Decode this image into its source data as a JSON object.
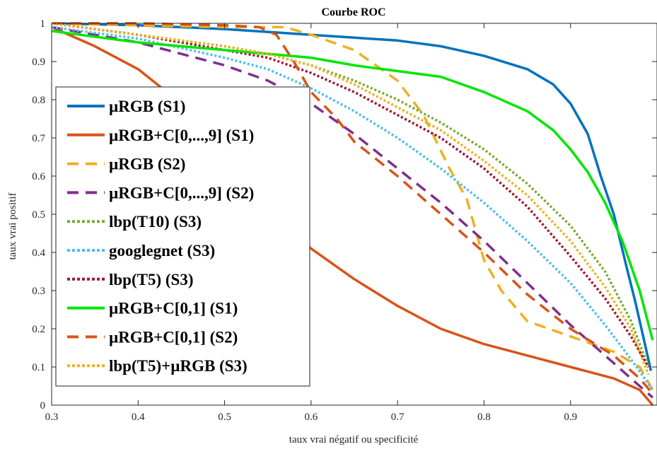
{
  "chart_data": {
    "type": "line",
    "title": "Courbe ROC",
    "xlabel": "taux vrai négatif ou specificité",
    "ylabel": "taux vrai positif",
    "xlim": [
      0.3,
      1.0
    ],
    "ylim": [
      0,
      1
    ],
    "xticks": [
      0.3,
      0.4,
      0.5,
      0.6,
      0.7,
      0.8,
      0.9
    ],
    "xtick_labels": [
      "0.3",
      "0.4",
      "0.5",
      "0.6",
      "0.7",
      "0.8",
      "0.9"
    ],
    "yticks": [
      0,
      0.1,
      0.2,
      0.3,
      0.4,
      0.5,
      0.6,
      0.7,
      0.8,
      0.9,
      1
    ],
    "ytick_labels": [
      "0",
      "0.1",
      "0.2",
      "0.3",
      "0.4",
      "0.5",
      "0.6",
      "0.7",
      "0.8",
      "0.9",
      "1"
    ],
    "grid": false,
    "legend_position": "left",
    "series": [
      {
        "name": "µRGB (S1)",
        "color": "#0072BD",
        "dash": "solid",
        "points": [
          [
            0.3,
            1.0
          ],
          [
            0.4,
            0.995
          ],
          [
            0.5,
            0.985
          ],
          [
            0.6,
            0.97
          ],
          [
            0.7,
            0.955
          ],
          [
            0.75,
            0.94
          ],
          [
            0.8,
            0.915
          ],
          [
            0.85,
            0.88
          ],
          [
            0.88,
            0.84
          ],
          [
            0.9,
            0.79
          ],
          [
            0.92,
            0.71
          ],
          [
            0.935,
            0.6
          ],
          [
            0.95,
            0.5
          ],
          [
            0.965,
            0.36
          ],
          [
            0.975,
            0.27
          ],
          [
            0.985,
            0.17
          ],
          [
            0.993,
            0.09
          ]
        ]
      },
      {
        "name": "µRGB+C[0,...,9] (S1)",
        "color": "#D95319",
        "dash": "solid",
        "points": [
          [
            0.3,
            0.99
          ],
          [
            0.35,
            0.94
          ],
          [
            0.4,
            0.88
          ],
          [
            0.45,
            0.79
          ],
          [
            0.5,
            0.66
          ],
          [
            0.55,
            0.52
          ],
          [
            0.6,
            0.41
          ],
          [
            0.65,
            0.33
          ],
          [
            0.7,
            0.26
          ],
          [
            0.75,
            0.2
          ],
          [
            0.8,
            0.16
          ],
          [
            0.85,
            0.13
          ],
          [
            0.9,
            0.1
          ],
          [
            0.95,
            0.07
          ],
          [
            0.98,
            0.04
          ],
          [
            0.995,
            0.0
          ]
        ]
      },
      {
        "name": "µRGB (S2)",
        "color": "#EDB120",
        "dash": "dashed",
        "points": [
          [
            0.3,
            1.0
          ],
          [
            0.4,
            0.995
          ],
          [
            0.5,
            0.99
          ],
          [
            0.57,
            0.99
          ],
          [
            0.6,
            0.97
          ],
          [
            0.65,
            0.93
          ],
          [
            0.7,
            0.85
          ],
          [
            0.73,
            0.76
          ],
          [
            0.76,
            0.62
          ],
          [
            0.78,
            0.54
          ],
          [
            0.8,
            0.38
          ],
          [
            0.82,
            0.3
          ],
          [
            0.85,
            0.22
          ],
          [
            0.9,
            0.18
          ],
          [
            0.95,
            0.14
          ],
          [
            0.98,
            0.1
          ],
          [
            0.995,
            0.04
          ]
        ]
      },
      {
        "name": "µRGB+C[0,...,9] (S2)",
        "color": "#7E2F8E",
        "dash": "dashed",
        "points": [
          [
            0.3,
            0.99
          ],
          [
            0.4,
            0.95
          ],
          [
            0.5,
            0.89
          ],
          [
            0.55,
            0.85
          ],
          [
            0.6,
            0.79
          ],
          [
            0.65,
            0.71
          ],
          [
            0.7,
            0.62
          ],
          [
            0.75,
            0.53
          ],
          [
            0.8,
            0.43
          ],
          [
            0.85,
            0.32
          ],
          [
            0.9,
            0.21
          ],
          [
            0.95,
            0.11
          ],
          [
            0.98,
            0.05
          ],
          [
            0.995,
            0.02
          ]
        ]
      },
      {
        "name": "lbp(T10) (S3)",
        "color": "#77AC30",
        "dash": "dotted",
        "points": [
          [
            0.3,
            1.0
          ],
          [
            0.4,
            0.97
          ],
          [
            0.5,
            0.94
          ],
          [
            0.55,
            0.92
          ],
          [
            0.6,
            0.89
          ],
          [
            0.65,
            0.85
          ],
          [
            0.7,
            0.8
          ],
          [
            0.75,
            0.74
          ],
          [
            0.8,
            0.67
          ],
          [
            0.85,
            0.58
          ],
          [
            0.9,
            0.47
          ],
          [
            0.94,
            0.35
          ],
          [
            0.97,
            0.22
          ],
          [
            0.99,
            0.1
          ]
        ]
      },
      {
        "name": "googlegnet (S3)",
        "color": "#4DBEEE",
        "dash": "dotted",
        "points": [
          [
            0.3,
            0.99
          ],
          [
            0.4,
            0.96
          ],
          [
            0.5,
            0.91
          ],
          [
            0.55,
            0.88
          ],
          [
            0.6,
            0.83
          ],
          [
            0.65,
            0.77
          ],
          [
            0.7,
            0.7
          ],
          [
            0.75,
            0.62
          ],
          [
            0.8,
            0.53
          ],
          [
            0.85,
            0.43
          ],
          [
            0.9,
            0.32
          ],
          [
            0.94,
            0.21
          ],
          [
            0.97,
            0.12
          ],
          [
            0.995,
            0.04
          ]
        ]
      },
      {
        "name": "lbp(T5) (S3)",
        "color": "#A2142F",
        "dash": "dotted",
        "points": [
          [
            0.3,
            1.0
          ],
          [
            0.4,
            0.97
          ],
          [
            0.5,
            0.93
          ],
          [
            0.55,
            0.91
          ],
          [
            0.6,
            0.87
          ],
          [
            0.65,
            0.82
          ],
          [
            0.7,
            0.76
          ],
          [
            0.75,
            0.7
          ],
          [
            0.8,
            0.62
          ],
          [
            0.85,
            0.52
          ],
          [
            0.9,
            0.39
          ],
          [
            0.94,
            0.28
          ],
          [
            0.97,
            0.18
          ],
          [
            0.99,
            0.1
          ]
        ]
      },
      {
        "name": "µRGB+C[0,1] (S1)",
        "color": "#00E600",
        "dash": "solid",
        "points": [
          [
            0.3,
            0.98
          ],
          [
            0.4,
            0.95
          ],
          [
            0.5,
            0.93
          ],
          [
            0.6,
            0.91
          ],
          [
            0.65,
            0.89
          ],
          [
            0.7,
            0.875
          ],
          [
            0.75,
            0.86
          ],
          [
            0.8,
            0.82
          ],
          [
            0.85,
            0.77
          ],
          [
            0.88,
            0.72
          ],
          [
            0.9,
            0.67
          ],
          [
            0.92,
            0.61
          ],
          [
            0.94,
            0.53
          ],
          [
            0.96,
            0.43
          ],
          [
            0.98,
            0.3
          ],
          [
            0.995,
            0.17
          ]
        ]
      },
      {
        "name": "µRGB+C[0,1] (S2)",
        "color": "#D95319",
        "dash": "dashed",
        "points": [
          [
            0.3,
            1.0
          ],
          [
            0.4,
            1.0
          ],
          [
            0.5,
            0.995
          ],
          [
            0.54,
            0.99
          ],
          [
            0.56,
            0.97
          ],
          [
            0.58,
            0.9
          ],
          [
            0.6,
            0.82
          ],
          [
            0.63,
            0.75
          ],
          [
            0.65,
            0.69
          ],
          [
            0.7,
            0.6
          ],
          [
            0.75,
            0.5
          ],
          [
            0.8,
            0.4
          ],
          [
            0.85,
            0.29
          ],
          [
            0.9,
            0.2
          ],
          [
            0.95,
            0.13
          ],
          [
            0.98,
            0.07
          ],
          [
            0.995,
            0.03
          ]
        ]
      },
      {
        "name": "lbp(T5)+µRGB (S3)",
        "color": "#EDB120",
        "dash": "dotted",
        "points": [
          [
            0.3,
            1.0
          ],
          [
            0.4,
            0.97
          ],
          [
            0.5,
            0.94
          ],
          [
            0.55,
            0.92
          ],
          [
            0.6,
            0.89
          ],
          [
            0.65,
            0.84
          ],
          [
            0.7,
            0.78
          ],
          [
            0.75,
            0.72
          ],
          [
            0.8,
            0.64
          ],
          [
            0.85,
            0.55
          ],
          [
            0.9,
            0.43
          ],
          [
            0.94,
            0.31
          ],
          [
            0.97,
            0.2
          ],
          [
            0.99,
            0.08
          ]
        ]
      }
    ]
  }
}
